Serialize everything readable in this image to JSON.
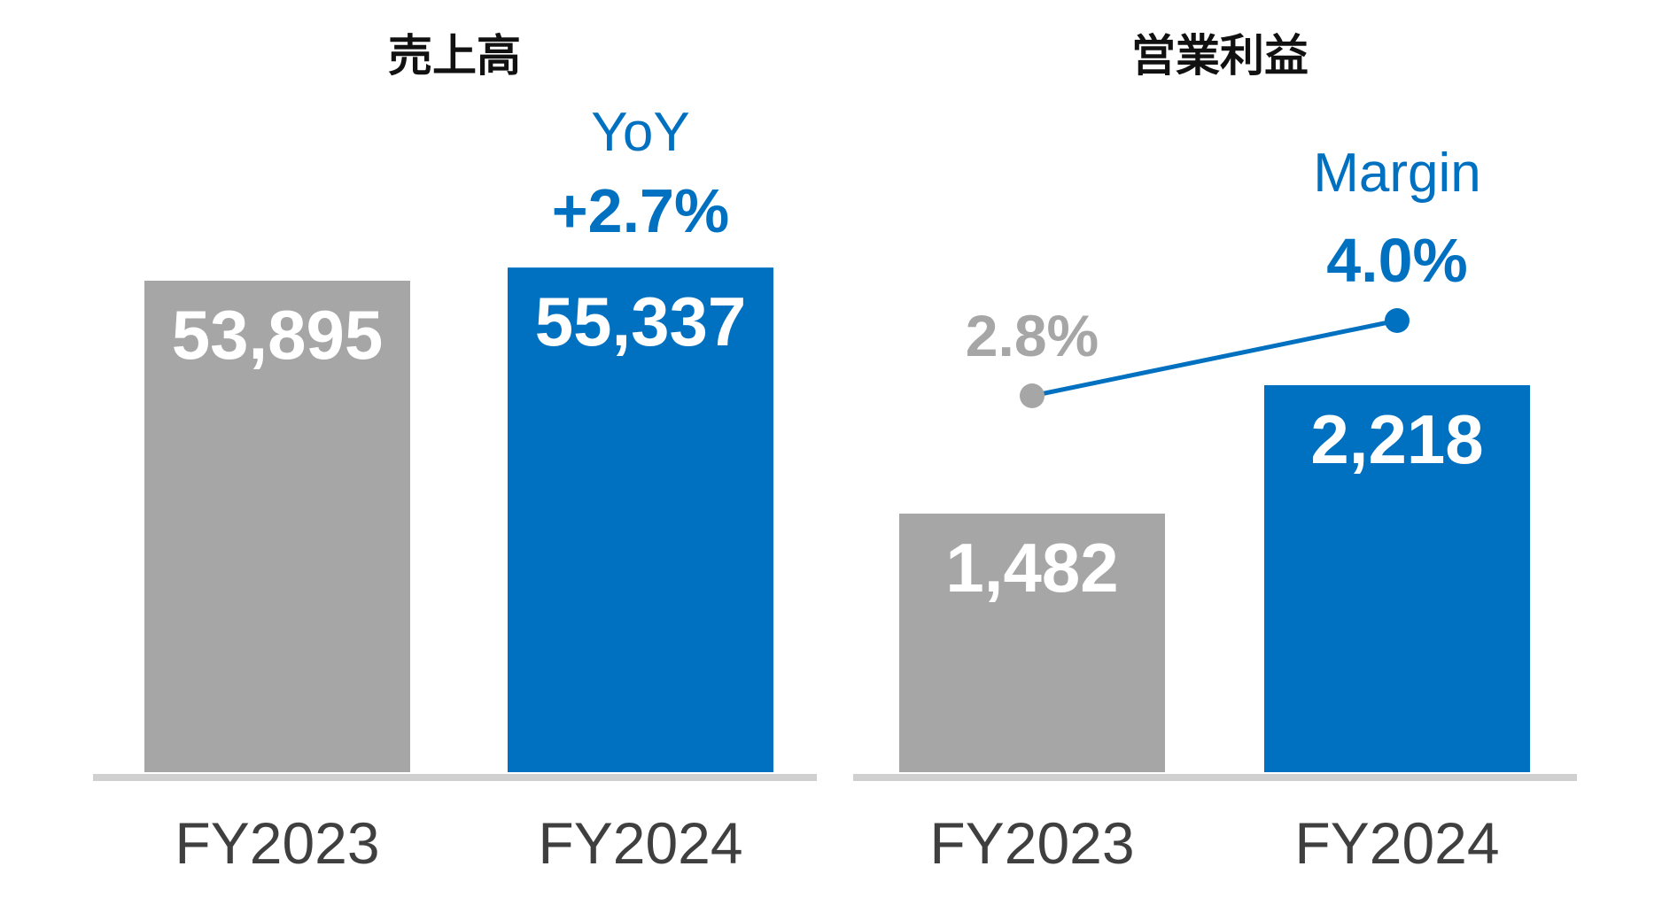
{
  "colors": {
    "fy2023": "#a6a6a6",
    "fy2024": "#0070c0",
    "axis": "#d0d0d0"
  },
  "chart_data": [
    {
      "type": "bar",
      "title": "売上高",
      "categories": [
        "FY2023",
        "FY2024"
      ],
      "values": [
        53895,
        55337
      ],
      "value_labels": [
        "53,895",
        "55,337"
      ],
      "annotation": {
        "label": "YoY",
        "value": "+2.7%"
      }
    },
    {
      "type": "bar",
      "title": "営業利益",
      "categories": [
        "FY2023",
        "FY2024"
      ],
      "values": [
        1482,
        2218
      ],
      "value_labels": [
        "1,482",
        "2,218"
      ],
      "annotation": {
        "label": "Margin",
        "value": "4.0%"
      },
      "secondary_line": {
        "values": [
          2.8,
          4.0
        ],
        "value_labels": [
          "2.8%",
          "4.0%"
        ]
      }
    }
  ]
}
